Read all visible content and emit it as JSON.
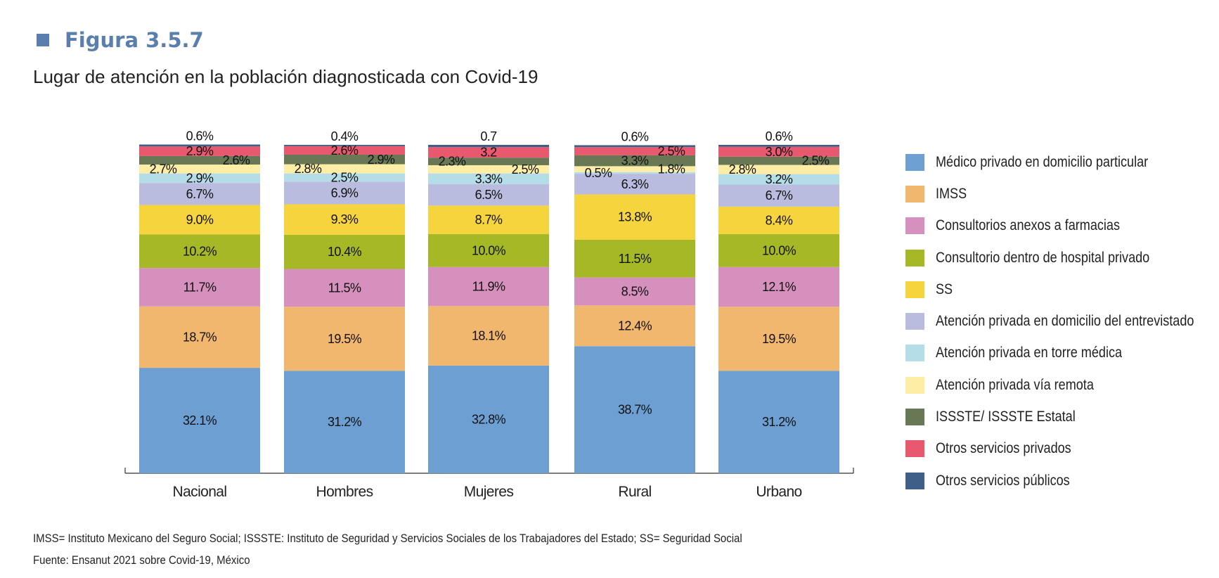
{
  "figure_label": "Figura 3.5.7",
  "footnotes": [
    "IMSS= Instituto Mexicano del Seguro Social; ISSSTE: Instituto de Seguridad y Servicios Sociales de los Trabajadores del Estado; SS= Seguridad Social",
    "Fuente: Ensanut 2021 sobre Covid-19, México"
  ],
  "chart_data": {
    "type": "bar",
    "stacked": true,
    "title": "Lugar de atención en la población diagnosticada con Covid-19",
    "xlabel": "",
    "ylabel": "",
    "ylim": [
      0,
      100
    ],
    "grid": false,
    "legend_position": "right",
    "categories": [
      "Nacional",
      "Hombres",
      "Mujeres",
      "Rural",
      "Urbano"
    ],
    "series": [
      {
        "name": "Médico privado en domicilio particular",
        "color": "#6e9fd3",
        "values": [
          32.1,
          31.2,
          32.8,
          38.7,
          31.2
        ],
        "labels": [
          "32.1%",
          "31.2%",
          "32.8%",
          "38.7%",
          "31.2%"
        ]
      },
      {
        "name": "IMSS",
        "color": "#f2b76f",
        "values": [
          18.7,
          19.5,
          18.1,
          12.4,
          19.5
        ],
        "labels": [
          "18.7%",
          "19.5%",
          "18.1%",
          "12.4%",
          "19.5%"
        ]
      },
      {
        "name": "Consultorios anexos a farmacias",
        "color": "#d690bd",
        "values": [
          11.7,
          11.5,
          11.9,
          8.5,
          12.1
        ],
        "labels": [
          "11.7%",
          "11.5%",
          "11.9%",
          "8.5%",
          "12.1%"
        ]
      },
      {
        "name": "Consultorio dentro de hospital privado",
        "color": "#a7b827",
        "values": [
          10.2,
          10.4,
          10.0,
          11.5,
          10.0
        ],
        "labels": [
          "10.2%",
          "10.4%",
          "10.0%",
          "11.5%",
          "10.0%"
        ]
      },
      {
        "name": "SS",
        "color": "#f5d43d",
        "values": [
          9.0,
          9.3,
          8.7,
          13.8,
          8.4
        ],
        "labels": [
          "9.0%",
          "9.3%",
          "8.7%",
          "13.8%",
          "8.4%"
        ]
      },
      {
        "name": "Atención privada en domicilio del entrevistado",
        "color": "#b9bcdf",
        "values": [
          6.7,
          6.9,
          6.5,
          6.3,
          6.7
        ],
        "labels": [
          "6.7%",
          "6.9%",
          "6.5%",
          "6.3%",
          "6.7%"
        ]
      },
      {
        "name": "Atención privada en torre médica",
        "color": "#b5dde8",
        "values": [
          2.9,
          2.5,
          3.3,
          0.5,
          3.2
        ],
        "labels": [
          "2.9%",
          "2.5%",
          "3.3%",
          "0.5%",
          "3.2%"
        ]
      },
      {
        "name": "Atención privada vía remota",
        "color": "#fdeda5",
        "values": [
          2.7,
          2.8,
          2.5,
          1.8,
          2.8
        ],
        "labels": [
          "2.7%",
          "2.8%",
          "2.5%",
          "1.8%",
          "2.8%"
        ]
      },
      {
        "name": "ISSSTE/ ISSSTE Estatal",
        "color": "#687754",
        "values": [
          2.6,
          2.9,
          2.3,
          3.3,
          2.5
        ],
        "labels": [
          "2.6%",
          "2.9%",
          "2.3%",
          "3.3%",
          "2.5%"
        ]
      },
      {
        "name": "Otros servicios privados",
        "color": "#e8586f",
        "values": [
          2.9,
          2.6,
          3.2,
          2.5,
          3.0
        ],
        "labels": [
          "2.9%",
          "2.6%",
          "3.2",
          "2.5%",
          "3.0%"
        ]
      },
      {
        "name": "Otros servicios públicos",
        "color": "#3f5e88",
        "values": [
          0.6,
          0.4,
          0.7,
          0.6,
          0.6
        ],
        "labels": [
          "0.6%",
          "0.4%",
          "0.7",
          "0.6%",
          "0.6%"
        ]
      }
    ]
  }
}
